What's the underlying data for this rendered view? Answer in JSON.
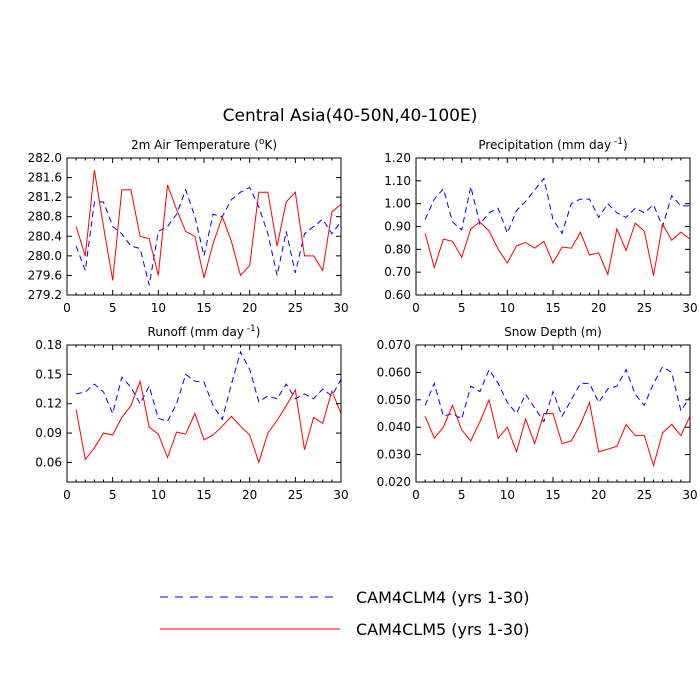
{
  "figure": {
    "title": "Central Asia(40-50N,40-100E)"
  },
  "legend": {
    "entries": [
      {
        "label": "CAM4CLM4 (yrs 1-30)",
        "color": "#0000ff",
        "dash": "dashed"
      },
      {
        "label": "CAM4CLM5 (yrs 1-30)",
        "color": "#ff0000",
        "dash": "solid"
      }
    ]
  },
  "chart_data": [
    {
      "type": "line",
      "title": "2m Air Temperature",
      "title_sup": "o",
      "title_unit_prefix": "K",
      "title_full": "2m Air Temperature (°K)",
      "xlim": [
        0,
        30
      ],
      "ylim": [
        279.2,
        282.0
      ],
      "xticks": [
        0,
        5,
        10,
        15,
        20,
        25,
        30
      ],
      "yticks": [
        279.2,
        279.6,
        280.0,
        280.4,
        280.8,
        281.2,
        281.6,
        282.0
      ],
      "ytick_labels": [
        "279.2",
        "279.6",
        "280.0",
        "280.4",
        "280.8",
        "281.2",
        "281.6",
        "282.0"
      ],
      "x": [
        1,
        2,
        3,
        4,
        5,
        6,
        7,
        8,
        9,
        10,
        11,
        12,
        13,
        14,
        15,
        16,
        17,
        18,
        19,
        20,
        21,
        22,
        23,
        24,
        25,
        26,
        27,
        28,
        29,
        30
      ],
      "series": [
        {
          "name": "CAM4CLM4 (yrs 1-30)",
          "color": "#0000ff",
          "dash": "dashed",
          "values": [
            280.2,
            279.7,
            281.1,
            281.1,
            280.6,
            280.45,
            280.2,
            280.15,
            279.4,
            280.5,
            280.6,
            280.85,
            281.35,
            280.8,
            280.0,
            280.85,
            280.8,
            281.15,
            281.3,
            281.4,
            281.0,
            280.45,
            279.6,
            280.5,
            279.65,
            280.45,
            280.6,
            280.75,
            280.45,
            280.7
          ]
        },
        {
          "name": "CAM4CLM5 (yrs 1-30)",
          "color": "#ff0000",
          "dash": "solid",
          "values": [
            280.6,
            280.0,
            281.75,
            280.6,
            279.5,
            281.35,
            281.35,
            280.4,
            280.35,
            279.6,
            281.45,
            280.95,
            280.5,
            280.4,
            279.55,
            280.25,
            280.8,
            280.3,
            279.6,
            279.8,
            281.3,
            281.3,
            280.2,
            281.1,
            281.3,
            280.0,
            280.0,
            279.7,
            280.9,
            281.05
          ]
        }
      ]
    },
    {
      "type": "line",
      "title": "Precipitation (mm day",
      "title_sup": "-1",
      "title_suffix": ")",
      "title_full": "Precipitation (mm day-1)",
      "xlim": [
        0,
        30
      ],
      "ylim": [
        0.6,
        1.2
      ],
      "xticks": [
        0,
        5,
        10,
        15,
        20,
        25,
        30
      ],
      "yticks": [
        0.6,
        0.7,
        0.8,
        0.9,
        1.0,
        1.1,
        1.2
      ],
      "ytick_labels": [
        "0.60",
        "0.70",
        "0.80",
        "0.90",
        "1.00",
        "1.10",
        "1.20"
      ],
      "x": [
        1,
        2,
        3,
        4,
        5,
        6,
        7,
        8,
        9,
        10,
        11,
        12,
        13,
        14,
        15,
        16,
        17,
        18,
        19,
        20,
        21,
        22,
        23,
        24,
        25,
        26,
        27,
        28,
        29,
        30
      ],
      "series": [
        {
          "name": "CAM4CLM4 (yrs 1-30)",
          "color": "#0000ff",
          "dash": "dashed",
          "values": [
            0.93,
            1.02,
            1.065,
            0.92,
            0.885,
            1.075,
            0.91,
            0.96,
            0.98,
            0.87,
            0.97,
            1.01,
            1.06,
            1.11,
            0.93,
            0.87,
            1.0,
            1.02,
            1.02,
            0.94,
            1.0,
            0.96,
            0.94,
            0.98,
            0.96,
            0.995,
            0.9,
            1.035,
            0.99,
            0.99
          ]
        },
        {
          "name": "CAM4CLM5 (yrs 1-30)",
          "color": "#ff0000",
          "dash": "solid",
          "values": [
            0.87,
            0.72,
            0.845,
            0.835,
            0.765,
            0.89,
            0.92,
            0.88,
            0.8,
            0.74,
            0.815,
            0.83,
            0.805,
            0.835,
            0.74,
            0.81,
            0.805,
            0.875,
            0.775,
            0.785,
            0.69,
            0.89,
            0.795,
            0.915,
            0.88,
            0.685,
            0.91,
            0.84,
            0.875,
            0.845
          ]
        }
      ]
    },
    {
      "type": "line",
      "title": "Runoff (mm day",
      "title_sup": "-1",
      "title_suffix": ")",
      "title_full": "Runoff (mm day-1)",
      "xlim": [
        0,
        30
      ],
      "ylim": [
        0.04,
        0.18
      ],
      "xticks": [
        0,
        5,
        10,
        15,
        20,
        25,
        30
      ],
      "yticks": [
        0.06,
        0.09,
        0.12,
        0.15,
        0.18
      ],
      "ytick_labels": [
        "0.06",
        "0.09",
        "0.12",
        "0.15",
        "0.18"
      ],
      "x": [
        1,
        2,
        3,
        4,
        5,
        6,
        7,
        8,
        9,
        10,
        11,
        12,
        13,
        14,
        15,
        16,
        17,
        18,
        19,
        20,
        21,
        22,
        23,
        24,
        25,
        26,
        27,
        28,
        29,
        30
      ],
      "series": [
        {
          "name": "CAM4CLM4 (yrs 1-30)",
          "color": "#0000ff",
          "dash": "dashed",
          "values": [
            0.13,
            0.132,
            0.14,
            0.132,
            0.11,
            0.147,
            0.137,
            0.12,
            0.138,
            0.105,
            0.102,
            0.12,
            0.15,
            0.143,
            0.142,
            0.118,
            0.104,
            0.14,
            0.173,
            0.155,
            0.122,
            0.128,
            0.125,
            0.14,
            0.125,
            0.13,
            0.125,
            0.135,
            0.128,
            0.145
          ]
        },
        {
          "name": "CAM4CLM5 (yrs 1-30)",
          "color": "#ff0000",
          "dash": "solid",
          "values": [
            0.114,
            0.063,
            0.075,
            0.09,
            0.088,
            0.106,
            0.118,
            0.143,
            0.096,
            0.089,
            0.065,
            0.091,
            0.089,
            0.11,
            0.083,
            0.088,
            0.097,
            0.107,
            0.097,
            0.088,
            0.06,
            0.09,
            0.103,
            0.118,
            0.134,
            0.073,
            0.106,
            0.1,
            0.133,
            0.11
          ]
        }
      ]
    },
    {
      "type": "line",
      "title": "Snow Depth (m)",
      "title_full": "Snow Depth (m)",
      "xlim": [
        0,
        30
      ],
      "ylim": [
        0.02,
        0.07
      ],
      "xticks": [
        0,
        5,
        10,
        15,
        20,
        25,
        30
      ],
      "yticks": [
        0.02,
        0.03,
        0.04,
        0.05,
        0.06,
        0.07
      ],
      "ytick_labels": [
        "0.020",
        "0.030",
        "0.040",
        "0.050",
        "0.060",
        "0.070"
      ],
      "x": [
        1,
        2,
        3,
        4,
        5,
        6,
        7,
        8,
        9,
        10,
        11,
        12,
        13,
        14,
        15,
        16,
        17,
        18,
        19,
        20,
        21,
        22,
        23,
        24,
        25,
        26,
        27,
        28,
        29,
        30
      ],
      "series": [
        {
          "name": "CAM4CLM4 (yrs 1-30)",
          "color": "#0000ff",
          "dash": "dashed",
          "values": [
            0.048,
            0.056,
            0.044,
            0.045,
            0.043,
            0.055,
            0.053,
            0.061,
            0.056,
            0.049,
            0.045,
            0.052,
            0.047,
            0.042,
            0.053,
            0.044,
            0.05,
            0.056,
            0.056,
            0.049,
            0.054,
            0.055,
            0.061,
            0.052,
            0.048,
            0.056,
            0.062,
            0.06,
            0.046,
            0.051
          ]
        },
        {
          "name": "CAM4CLM5 (yrs 1-30)",
          "color": "#ff0000",
          "dash": "solid",
          "values": [
            0.044,
            0.036,
            0.04,
            0.048,
            0.039,
            0.035,
            0.042,
            0.05,
            0.036,
            0.04,
            0.031,
            0.043,
            0.034,
            0.045,
            0.045,
            0.034,
            0.035,
            0.041,
            0.049,
            0.031,
            0.032,
            0.033,
            0.041,
            0.037,
            0.037,
            0.026,
            0.038,
            0.041,
            0.037,
            0.044
          ]
        }
      ]
    }
  ]
}
